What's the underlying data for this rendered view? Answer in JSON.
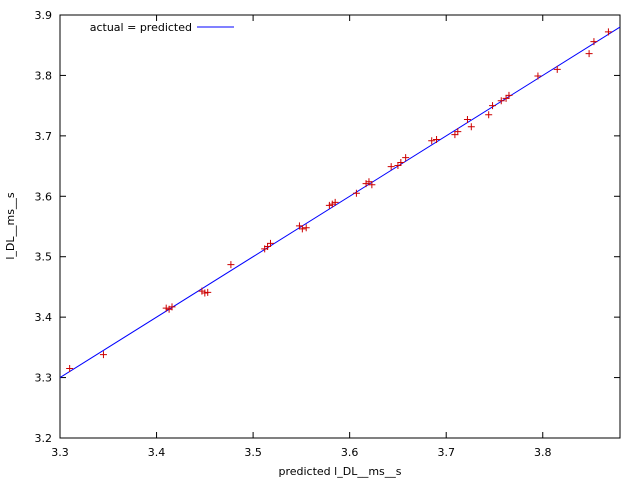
{
  "chart_data": {
    "type": "scatter",
    "xlabel": "predicted l_DL__ms__s",
    "ylabel": "l_DL__ms__s",
    "xlim": [
      3.3,
      3.88
    ],
    "ylim": [
      3.2,
      3.9
    ],
    "xticks": [
      "3.3",
      "3.4",
      "3.5",
      "3.6",
      "3.7",
      "3.8"
    ],
    "yticks": [
      "3.2",
      "3.3",
      "3.4",
      "3.5",
      "3.6",
      "3.7",
      "3.8",
      "3.9"
    ],
    "grid": false,
    "legend_position": "top-left",
    "series": [
      {
        "name": "actual = predicted",
        "kind": "line",
        "color": "#0000ff",
        "x": [
          3.3,
          3.88
        ],
        "y": [
          3.3,
          3.88
        ]
      },
      {
        "kind": "points",
        "marker": "plus",
        "color": "#cc0000",
        "x": [
          3.31,
          3.345,
          3.41,
          3.413,
          3.416,
          3.447,
          3.45,
          3.453,
          3.477,
          3.512,
          3.515,
          3.518,
          3.548,
          3.551,
          3.555,
          3.579,
          3.582,
          3.585,
          3.607,
          3.617,
          3.62,
          3.623,
          3.643,
          3.65,
          3.653,
          3.658,
          3.685,
          3.69,
          3.709,
          3.712,
          3.722,
          3.726,
          3.744,
          3.748,
          3.757,
          3.762,
          3.765,
          3.795,
          3.815,
          3.848,
          3.853,
          3.868
        ],
        "y": [
          3.315,
          3.338,
          3.415,
          3.413,
          3.417,
          3.443,
          3.44,
          3.441,
          3.487,
          3.513,
          3.517,
          3.522,
          3.551,
          3.546,
          3.548,
          3.585,
          3.587,
          3.59,
          3.605,
          3.621,
          3.624,
          3.619,
          3.649,
          3.651,
          3.656,
          3.664,
          3.692,
          3.694,
          3.702,
          3.707,
          3.727,
          3.715,
          3.735,
          3.75,
          3.758,
          3.762,
          3.767,
          3.799,
          3.81,
          3.836,
          3.856,
          3.872
        ]
      }
    ]
  }
}
